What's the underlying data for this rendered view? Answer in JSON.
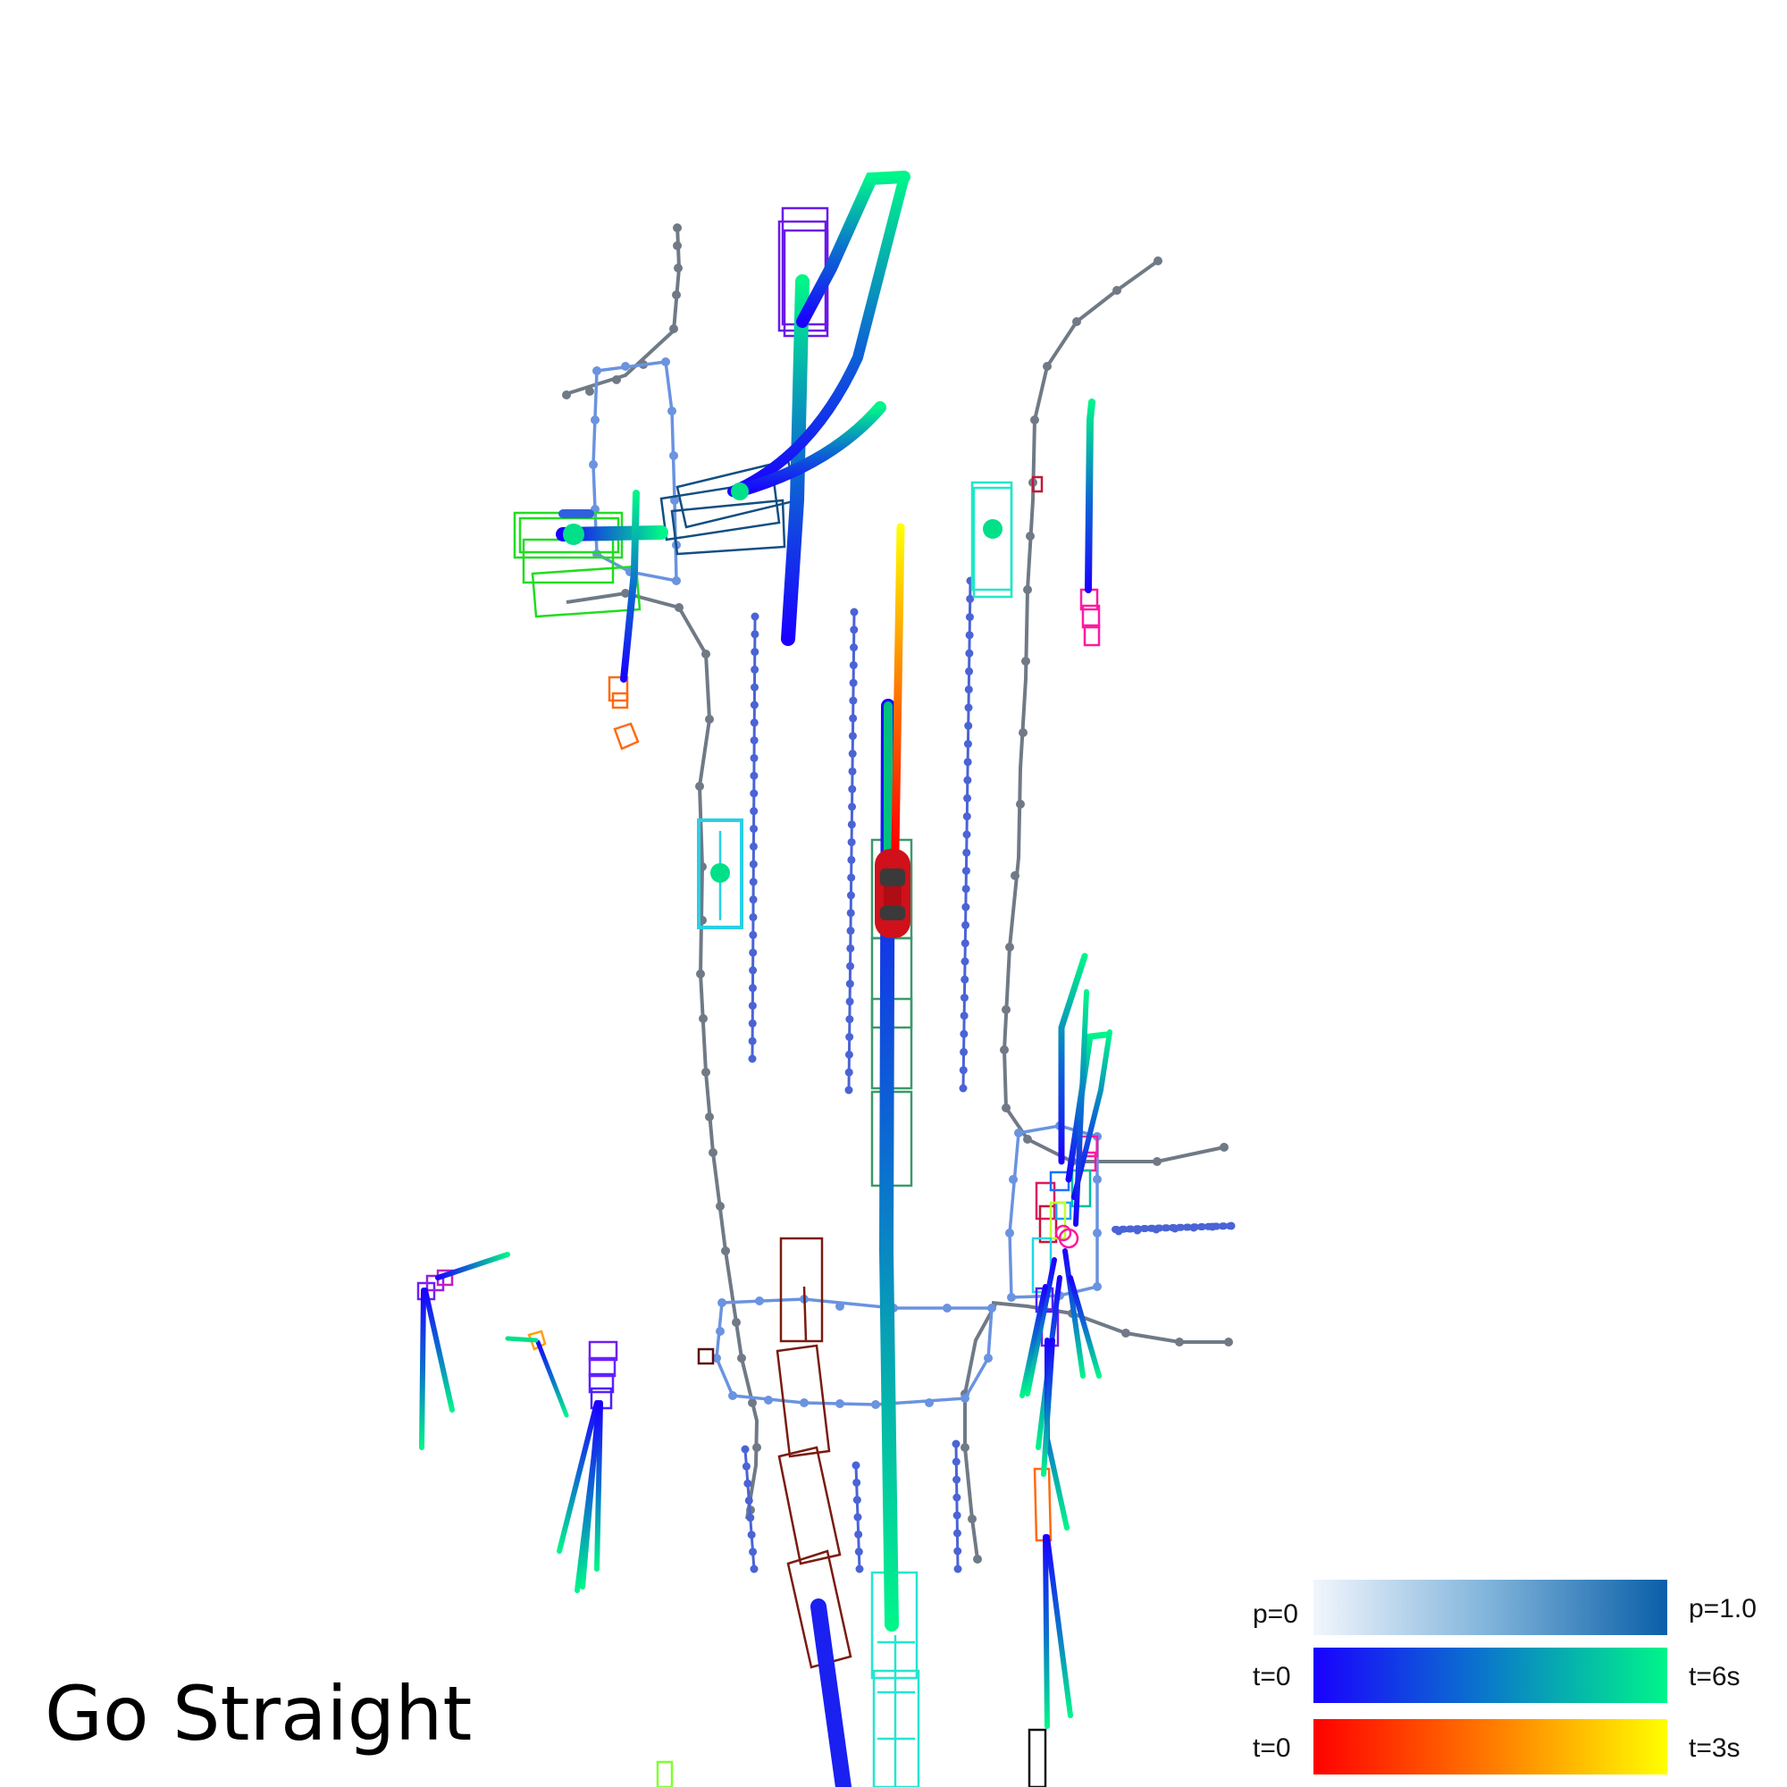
{
  "scene": {
    "title": "Go Straight",
    "colors": {
      "lane_boundary": "#707a86",
      "lane_center": "#4a63d6",
      "crosswalk": "#6a93e0",
      "ego_vehicle": "#d0101a",
      "ego_plan_start": "#ff0000",
      "ego_plan_end": "#ffff00",
      "prediction_start": "#1a00ff",
      "prediction_end": "#00f58a"
    },
    "icons": {
      "ego": "red-car-icon"
    }
  },
  "legend": {
    "probability": {
      "start_label": "p=0",
      "end_label": "p=1.0",
      "colors": [
        "#f2f6fd",
        "#0a5fa8"
      ]
    },
    "prediction_time": {
      "start_label": "t=0",
      "end_label": "t=6s",
      "colors": [
        "#1a00ff",
        "#0b6fcf",
        "#00f58a"
      ]
    },
    "plan_time": {
      "start_label": "t=0",
      "end_label": "t=3s",
      "colors": [
        "#ff0000",
        "#ff7a00",
        "#ffff00"
      ]
    }
  }
}
